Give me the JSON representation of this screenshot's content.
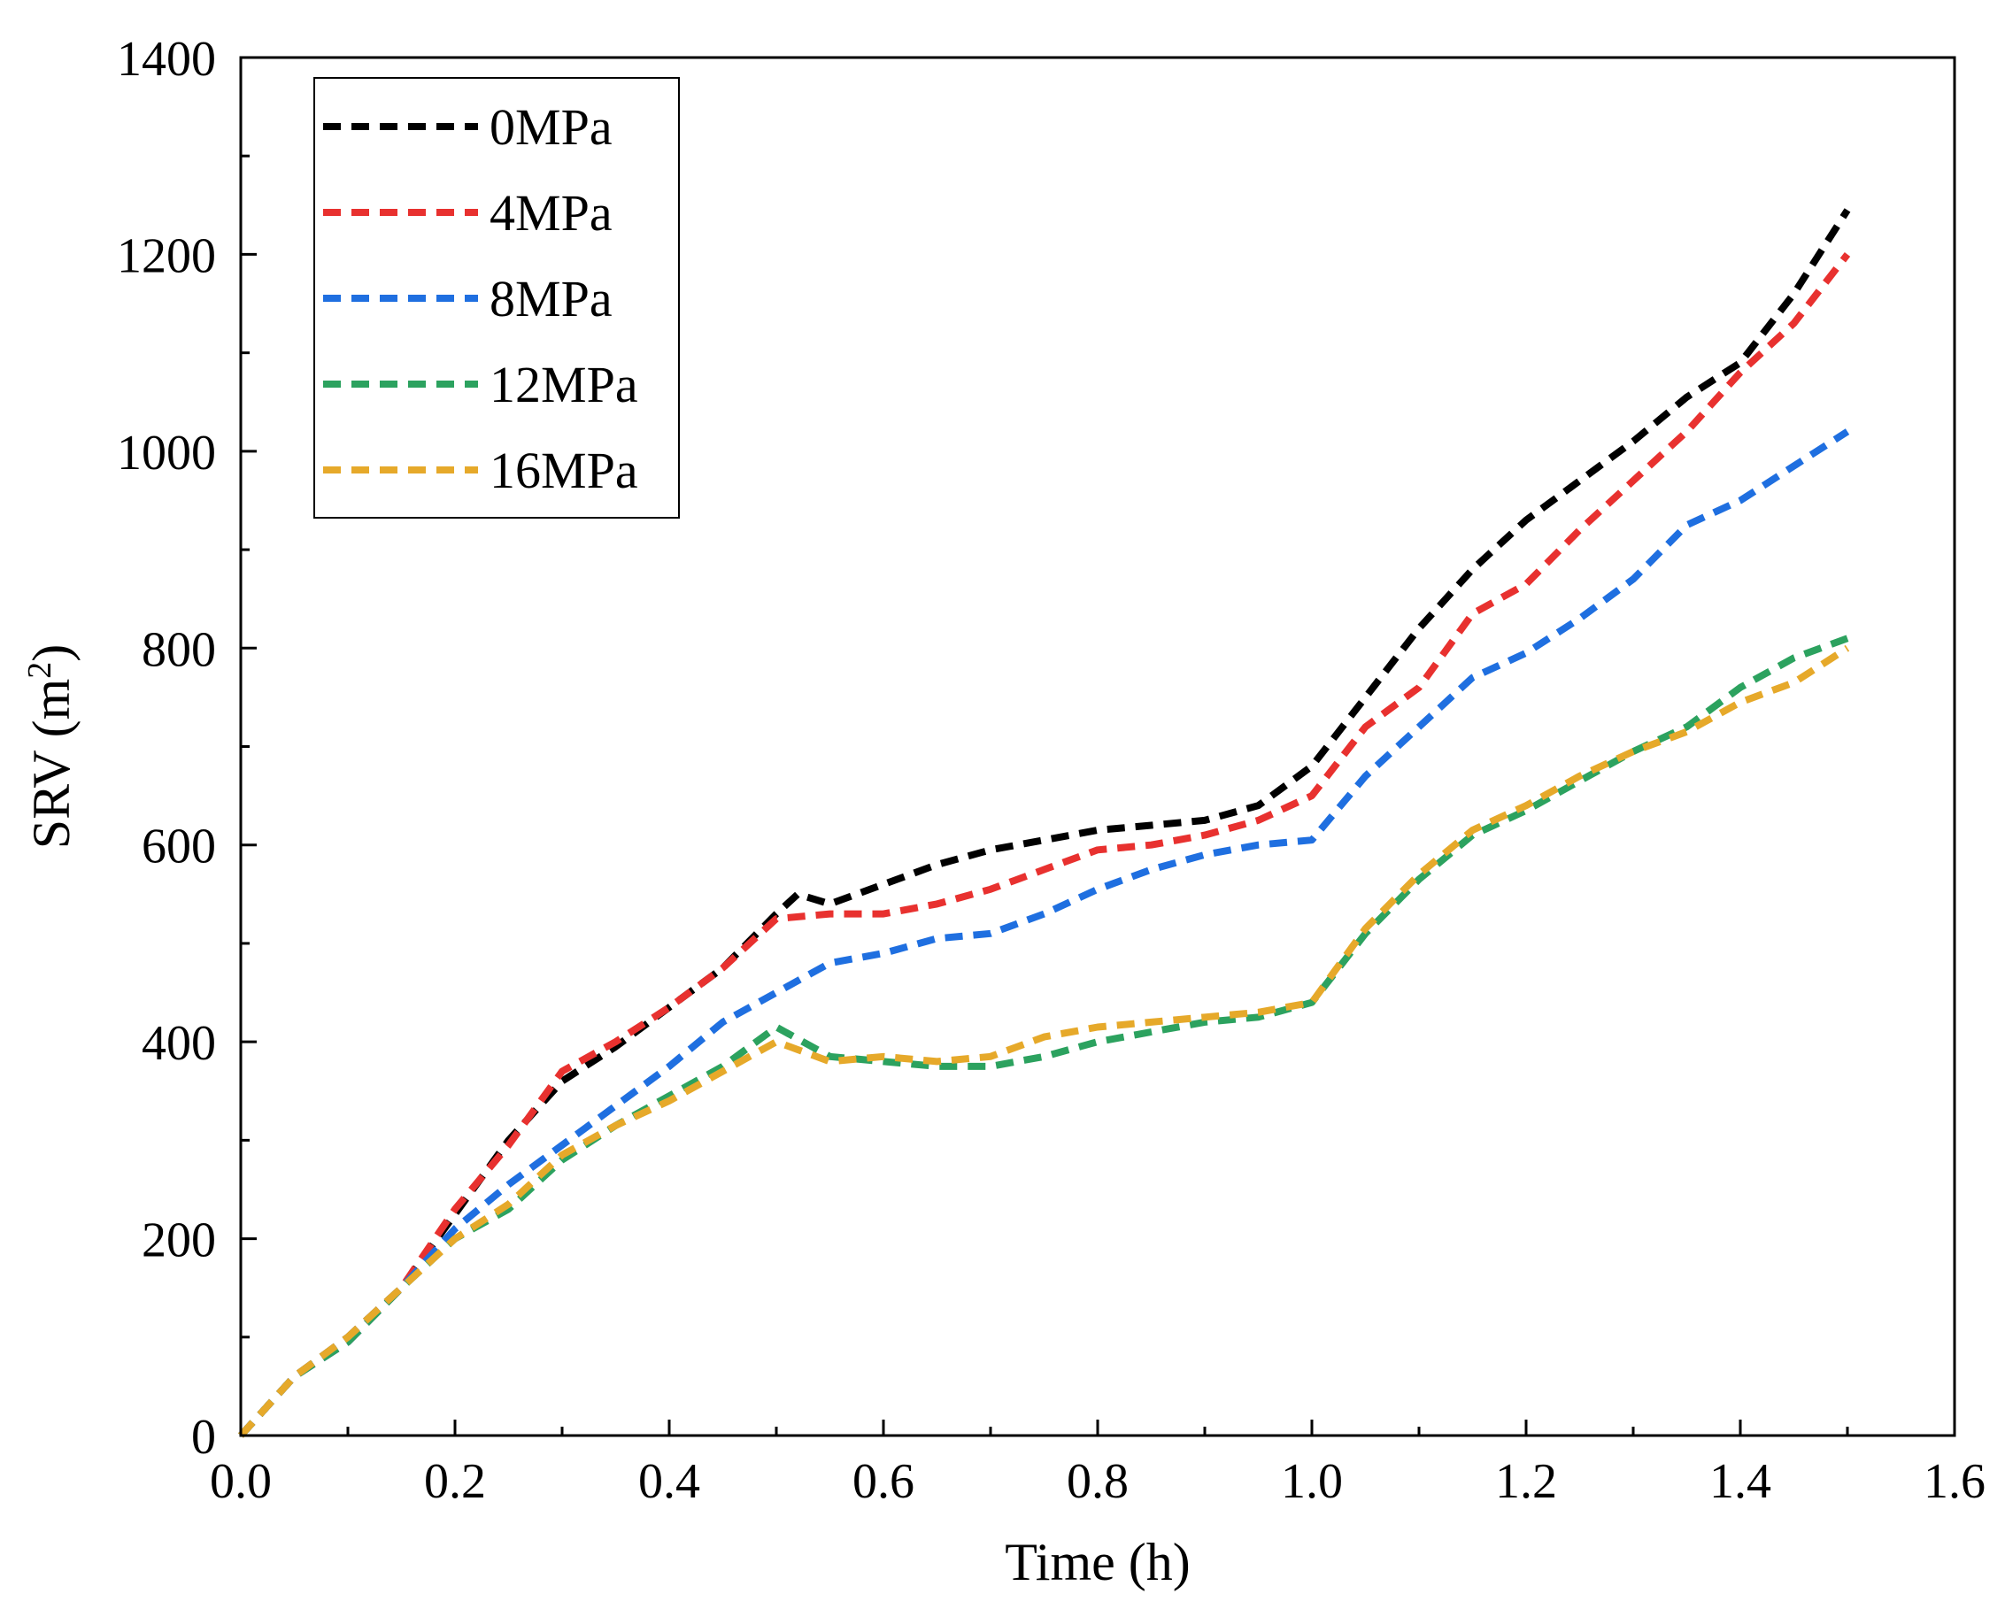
{
  "chart_data": {
    "type": "line",
    "title": "",
    "xlabel": "Time (h)",
    "ylabel_main": "SRV (m",
    "ylabel_sup": "2",
    "ylabel_end": ")",
    "xlim": [
      0.0,
      1.6
    ],
    "ylim": [
      0,
      1400
    ],
    "x_ticks": [
      0.0,
      0.2,
      0.4,
      0.6,
      0.8,
      1.0,
      1.2,
      1.4,
      1.6
    ],
    "x_tick_labels": [
      "0.0",
      "0.2",
      "0.4",
      "0.6",
      "0.8",
      "1.0",
      "1.2",
      "1.4",
      "1.6"
    ],
    "y_ticks": [
      0,
      200,
      400,
      600,
      800,
      1000,
      1200,
      1400
    ],
    "y_tick_labels": [
      "0",
      "200",
      "400",
      "600",
      "800",
      "1000",
      "1200",
      "1400"
    ],
    "grid": false,
    "legend_position": "top-left",
    "line_style": "dashed",
    "series": [
      {
        "name": "0MPa",
        "color": "#000000",
        "x": [
          0.0,
          0.05,
          0.1,
          0.15,
          0.2,
          0.25,
          0.3,
          0.35,
          0.4,
          0.45,
          0.5,
          0.52,
          0.55,
          0.6,
          0.65,
          0.7,
          0.75,
          0.8,
          0.85,
          0.9,
          0.95,
          1.0,
          1.05,
          1.1,
          1.15,
          1.2,
          1.25,
          1.3,
          1.35,
          1.4,
          1.45,
          1.5
        ],
        "y": [
          0,
          60,
          100,
          150,
          225,
          300,
          360,
          395,
          435,
          475,
          530,
          550,
          540,
          560,
          580,
          595,
          605,
          615,
          620,
          625,
          640,
          680,
          750,
          820,
          880,
          930,
          970,
          1010,
          1055,
          1090,
          1160,
          1245
        ]
      },
      {
        "name": "4MPa",
        "color": "#e8312f",
        "x": [
          0.0,
          0.05,
          0.1,
          0.15,
          0.2,
          0.25,
          0.3,
          0.35,
          0.4,
          0.45,
          0.5,
          0.55,
          0.6,
          0.65,
          0.7,
          0.75,
          0.8,
          0.85,
          0.9,
          0.95,
          1.0,
          1.05,
          1.1,
          1.15,
          1.2,
          1.25,
          1.3,
          1.35,
          1.4,
          1.45,
          1.5
        ],
        "y": [
          0,
          60,
          95,
          150,
          230,
          295,
          370,
          400,
          435,
          475,
          525,
          530,
          530,
          540,
          555,
          575,
          595,
          600,
          610,
          625,
          650,
          720,
          760,
          835,
          865,
          920,
          970,
          1020,
          1080,
          1130,
          1200
        ]
      },
      {
        "name": "8MPa",
        "color": "#1f6fe0",
        "x": [
          0.0,
          0.05,
          0.1,
          0.15,
          0.2,
          0.25,
          0.3,
          0.35,
          0.4,
          0.45,
          0.5,
          0.55,
          0.6,
          0.65,
          0.7,
          0.75,
          0.8,
          0.85,
          0.9,
          0.95,
          1.0,
          1.05,
          1.1,
          1.15,
          1.2,
          1.25,
          1.3,
          1.35,
          1.4,
          1.45,
          1.5
        ],
        "y": [
          0,
          60,
          95,
          150,
          210,
          255,
          295,
          335,
          375,
          420,
          450,
          480,
          490,
          505,
          510,
          530,
          555,
          575,
          590,
          600,
          605,
          670,
          720,
          770,
          795,
          830,
          870,
          925,
          950,
          985,
          1020
        ]
      },
      {
        "name": "12MPa",
        "color": "#2ca25f",
        "x": [
          0.0,
          0.05,
          0.1,
          0.15,
          0.2,
          0.25,
          0.3,
          0.35,
          0.4,
          0.45,
          0.5,
          0.55,
          0.6,
          0.65,
          0.7,
          0.75,
          0.8,
          0.85,
          0.9,
          0.95,
          1.0,
          1.05,
          1.1,
          1.15,
          1.2,
          1.25,
          1.3,
          1.35,
          1.4,
          1.45,
          1.5
        ],
        "y": [
          0,
          60,
          95,
          150,
          200,
          230,
          280,
          315,
          345,
          375,
          415,
          385,
          380,
          375,
          375,
          385,
          400,
          410,
          420,
          425,
          440,
          510,
          565,
          610,
          635,
          665,
          695,
          720,
          760,
          790,
          810
        ]
      },
      {
        "name": "16MPa",
        "color": "#e6a92a",
        "x": [
          0.0,
          0.05,
          0.1,
          0.15,
          0.2,
          0.25,
          0.3,
          0.35,
          0.4,
          0.45,
          0.5,
          0.55,
          0.6,
          0.65,
          0.7,
          0.75,
          0.8,
          0.85,
          0.9,
          0.95,
          1.0,
          1.05,
          1.1,
          1.15,
          1.2,
          1.25,
          1.3,
          1.35,
          1.4,
          1.45,
          1.5
        ],
        "y": [
          0,
          60,
          100,
          150,
          200,
          235,
          285,
          315,
          340,
          370,
          400,
          380,
          385,
          380,
          385,
          405,
          415,
          420,
          425,
          430,
          440,
          515,
          570,
          615,
          640,
          670,
          695,
          715,
          745,
          765,
          800
        ]
      }
    ]
  }
}
